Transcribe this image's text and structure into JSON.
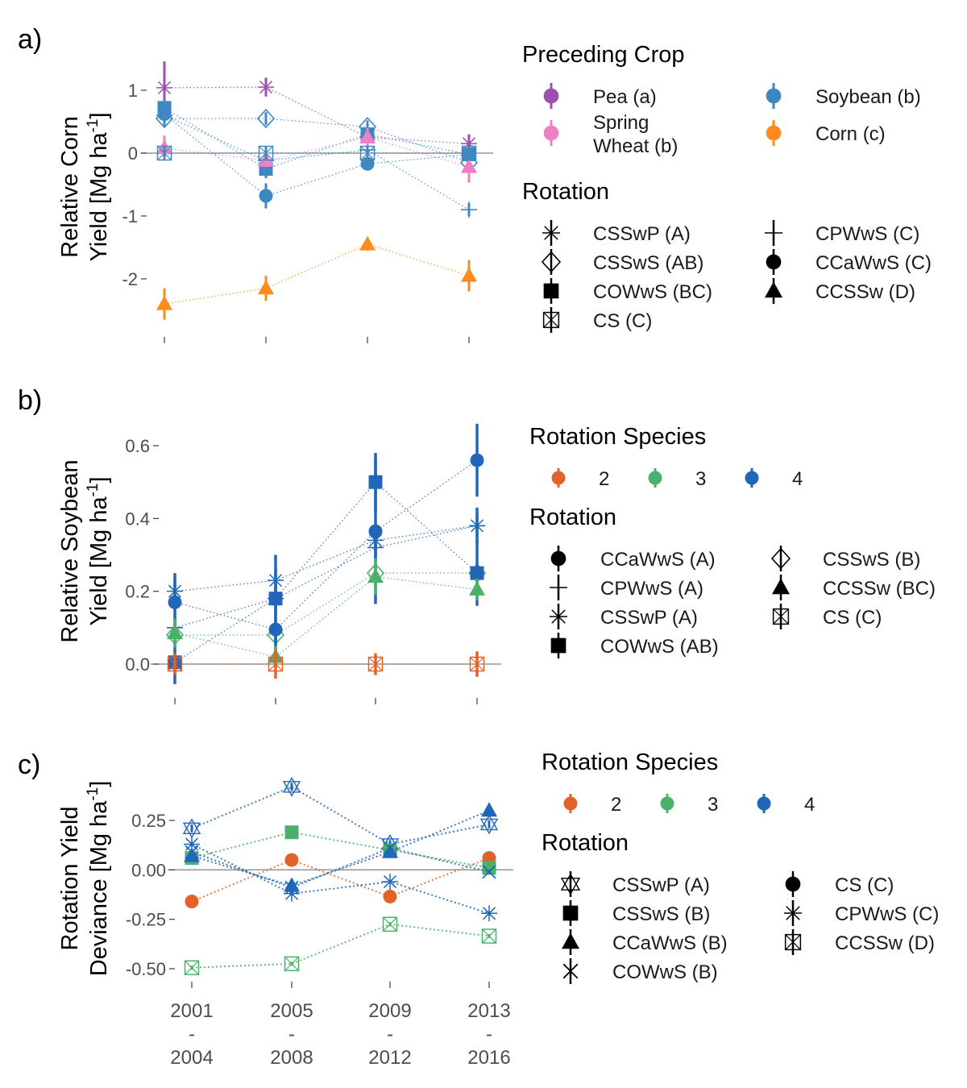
{
  "colors": {
    "pea": "#9b4fae",
    "spring_wheat": "#f07fc4",
    "soybean": "#3e88c2",
    "corn": "#ff8c1a",
    "species2": "#e2622a",
    "species3": "#4bb06a",
    "species4": "#2166b8",
    "zero_line": "#999999",
    "tick": "#4d4d4d"
  },
  "x_tick_labels": [
    [
      "2001",
      "-",
      "2004"
    ],
    [
      "2005",
      "-",
      "2008"
    ],
    [
      "2009",
      "-",
      "2012"
    ],
    [
      "2013",
      "-",
      "2016"
    ]
  ],
  "chart_data": [
    {
      "panel_label": "a)",
      "type": "scatter",
      "ylabel_lines": [
        "Relative Corn",
        "Yield [Mg ha",
        "-1",
        "]"
      ],
      "ylim": [
        -2.6,
        1.5
      ],
      "yticks": [
        1,
        0,
        -1,
        -2
      ],
      "ytick_labels": [
        "1",
        "0",
        "-1",
        "-2"
      ],
      "grid": false,
      "legend_placement": "right",
      "legends": [
        {
          "title": "Preceding Crop",
          "columns": 2,
          "entries": [
            {
              "label": [
                "Pea (a)"
              ],
              "color": "pea",
              "symbol": "circle"
            },
            {
              "label": [
                "Soybean (b)"
              ],
              "color": "soybean",
              "symbol": "circle"
            },
            {
              "label": [
                "Spring",
                "Wheat (b)"
              ],
              "color": "spring_wheat",
              "symbol": "circle"
            },
            {
              "label": [
                "Corn (c)"
              ],
              "color": "corn",
              "symbol": "circle"
            }
          ]
        },
        {
          "title": "Rotation",
          "columns": 2,
          "entries": [
            {
              "label": [
                "CSSwP (A)"
              ],
              "symbol": "asterisk"
            },
            {
              "label": [
                "CPWwS (C)"
              ],
              "symbol": "plus"
            },
            {
              "label": [
                "CSSwS (AB)"
              ],
              "symbol": "diamond-open"
            },
            {
              "label": [
                "CCaWwS (C)"
              ],
              "symbol": "circle"
            },
            {
              "label": [
                "COWwS (BC)"
              ],
              "symbol": "square"
            },
            {
              "label": [
                "CCSSw (D)"
              ],
              "symbol": "triangle"
            },
            {
              "label": [
                "CS (C)"
              ],
              "symbol": "square-x"
            }
          ]
        }
      ],
      "series": [
        {
          "rotation": "CSSwP",
          "symbol": "asterisk",
          "color": "pea",
          "y": [
            1.04,
            1.05,
            0.25,
            0.15
          ],
          "err": [
            0.42,
            0.15,
            0.15,
            0.15
          ]
        },
        {
          "rotation": "CPWwS",
          "symbol": "plus",
          "color": "soybean",
          "y": [
            0.6,
            -0.12,
            0.05,
            -0.9
          ],
          "err": [
            0.15,
            0.1,
            0.1,
            0.1
          ]
        },
        {
          "rotation": "CSSwS",
          "symbol": "diamond-open",
          "color": "soybean",
          "y": [
            0.55,
            0.55,
            0.42,
            -0.15
          ],
          "err": [
            0.12,
            0.1,
            0.1,
            0.1
          ]
        },
        {
          "rotation": "CCaWwS",
          "symbol": "circle",
          "color": "soybean",
          "y": [
            0.62,
            -0.68,
            -0.17,
            -0.02
          ],
          "err": [
            0.15,
            0.2,
            0.1,
            0.1
          ]
        },
        {
          "rotation": "COWwS",
          "symbol": "square",
          "color": "soybean",
          "y": [
            0.72,
            -0.25,
            0.3,
            -0.02
          ],
          "err": [
            0.15,
            0.15,
            0.1,
            0.1
          ]
        },
        {
          "rotation": "CCSSw",
          "symbol": "triangle",
          "color": "spring_wheat",
          "y": [
            0.08,
            -0.12,
            0.25,
            -0.22
          ],
          "err": [
            0.2,
            0.1,
            0.15,
            0.25
          ]
        },
        {
          "rotation": "CCSSw",
          "symbol": "triangle",
          "color": "corn",
          "y": [
            -2.4,
            -2.15,
            -1.45,
            -1.95
          ],
          "err": [
            0.25,
            0.2,
            0.1,
            0.25
          ]
        },
        {
          "rotation": "CS",
          "symbol": "square-x",
          "color": "soybean",
          "y": [
            0.0,
            0.0,
            0.0,
            0.0
          ],
          "err": [
            0.1,
            0.1,
            0.1,
            0.1
          ]
        }
      ]
    },
    {
      "panel_label": "b)",
      "type": "scatter",
      "ylabel_lines": [
        "Relative Soybean",
        "Yield [Mg ha",
        "-1",
        "]"
      ],
      "ylim": [
        -0.05,
        0.66
      ],
      "yticks": [
        0.6,
        0.4,
        0.2,
        0.0
      ],
      "ytick_labels": [
        "0.6",
        "0.4",
        "0.2",
        "0.0"
      ],
      "grid": false,
      "legend_placement": "right",
      "legends": [
        {
          "title": "Rotation Species",
          "columns": 3,
          "entries": [
            {
              "label": [
                "2"
              ],
              "color": "species2",
              "symbol": "circle"
            },
            {
              "label": [
                "3"
              ],
              "color": "species3",
              "symbol": "circle"
            },
            {
              "label": [
                "4"
              ],
              "color": "species4",
              "symbol": "circle"
            }
          ]
        },
        {
          "title": "Rotation",
          "columns": 2,
          "entries": [
            {
              "label": [
                "CCaWwS (A)"
              ],
              "symbol": "circle"
            },
            {
              "label": [
                "CSSwS (B)"
              ],
              "symbol": "diamond-open"
            },
            {
              "label": [
                "CPWwS (A)"
              ],
              "symbol": "plus"
            },
            {
              "label": [
                "CCSSw (BC)"
              ],
              "symbol": "triangle"
            },
            {
              "label": [
                "CSSwP (A)"
              ],
              "symbol": "asterisk"
            },
            {
              "label": [
                "CS (C)"
              ],
              "symbol": "square-x"
            },
            {
              "label": [
                "COWwS (AB)"
              ],
              "symbol": "square"
            }
          ]
        }
      ],
      "series": [
        {
          "rotation": "CSSwP",
          "symbol": "asterisk",
          "color": "species4",
          "y": [
            0.2,
            0.23,
            0.34,
            0.38
          ],
          "err": [
            0.03,
            0.03,
            0.03,
            0.05
          ]
        },
        {
          "rotation": "CPWwS",
          "symbol": "plus",
          "color": "species4",
          "y": [
            0.1,
            0.18,
            0.32,
            0.38
          ],
          "err": [
            0.03,
            0.03,
            0.03,
            0.03
          ]
        },
        {
          "rotation": "CSSwS",
          "symbol": "diamond-open",
          "color": "species3",
          "y": [
            0.08,
            0.08,
            0.25,
            0.25
          ],
          "err": [
            0.02,
            0.02,
            0.02,
            0.02
          ]
        },
        {
          "rotation": "CCaWwS",
          "symbol": "circle",
          "color": "species4",
          "y": [
            0.17,
            0.095,
            0.365,
            0.56
          ],
          "err": [
            0.08,
            0.1,
            0.2,
            0.1
          ]
        },
        {
          "rotation": "COWwS",
          "symbol": "square",
          "color": "species4",
          "y": [
            0.005,
            0.18,
            0.5,
            0.25
          ],
          "err": [
            0.06,
            0.12,
            0.08,
            0.09
          ]
        },
        {
          "rotation": "CCSSw",
          "symbol": "triangle",
          "color": "species3",
          "y": [
            0.085,
            0.02,
            0.24,
            0.205
          ],
          "err": [
            0.04,
            0.03,
            0.05,
            0.03
          ]
        },
        {
          "rotation": "CS",
          "symbol": "square-x",
          "color": "species2",
          "y": [
            0.0,
            0.0,
            0.0,
            0.0
          ],
          "err": [
            0.03,
            0.04,
            0.03,
            0.035
          ]
        }
      ]
    },
    {
      "panel_label": "c)",
      "type": "scatter",
      "ylabel_lines": [
        "Rotation Yield",
        "Deviance [Mg ha",
        "-1",
        "]"
      ],
      "ylim": [
        -0.55,
        0.45
      ],
      "yticks": [
        0.25,
        0.0,
        -0.25,
        -0.5
      ],
      "ytick_labels": [
        "0.25",
        "0.00",
        "-0.25",
        "-0.50"
      ],
      "grid": false,
      "legend_placement": "right",
      "legends": [
        {
          "title": "Rotation Species",
          "columns": 3,
          "entries": [
            {
              "label": [
                "2"
              ],
              "color": "species2",
              "symbol": "circle"
            },
            {
              "label": [
                "3"
              ],
              "color": "species3",
              "symbol": "circle"
            },
            {
              "label": [
                "4"
              ],
              "color": "species4",
              "symbol": "circle"
            }
          ]
        },
        {
          "title": "Rotation",
          "columns": 2,
          "entries": [
            {
              "label": [
                "CSSwP (A)"
              ],
              "symbol": "hourglass"
            },
            {
              "label": [
                "CS (C)"
              ],
              "symbol": "circle"
            },
            {
              "label": [
                "CSSwS (B)"
              ],
              "symbol": "square"
            },
            {
              "label": [
                "CPWwS (C)"
              ],
              "symbol": "asterisk"
            },
            {
              "label": [
                "CCaWwS (B)"
              ],
              "symbol": "triangle"
            },
            {
              "label": [
                "CCSSw (D)"
              ],
              "symbol": "square-x"
            },
            {
              "label": [
                "COWwS (B)"
              ],
              "symbol": "x"
            }
          ]
        }
      ],
      "series": [
        {
          "rotation": "CSSwP",
          "symbol": "hourglass",
          "color": "species4",
          "y": [
            0.21,
            0.42,
            0.13,
            0.23
          ],
          "err": [
            0.02,
            0.02,
            0.02,
            0.02
          ]
        },
        {
          "rotation": "CS",
          "symbol": "circle",
          "color": "species2",
          "y": [
            -0.16,
            0.05,
            -0.135,
            0.06
          ],
          "err": [
            0.01,
            0.01,
            0.01,
            0.01
          ]
        },
        {
          "rotation": "CSSwS",
          "symbol": "square",
          "color": "species3",
          "y": [
            0.06,
            0.19,
            0.1,
            0.01
          ],
          "err": [
            0.01,
            0.01,
            0.01,
            0.01
          ]
        },
        {
          "rotation": "CPWwS",
          "symbol": "asterisk",
          "color": "species4",
          "y": [
            0.13,
            -0.12,
            -0.06,
            -0.22
          ],
          "err": [
            0.01,
            0.01,
            0.01,
            0.01
          ]
        },
        {
          "rotation": "CCaWwS",
          "symbol": "triangle",
          "color": "species4",
          "y": [
            0.07,
            -0.08,
            0.09,
            0.3
          ],
          "err": [
            0.01,
            0.01,
            0.01,
            0.01
          ]
        },
        {
          "rotation": "CCSSw",
          "symbol": "square-x",
          "color": "species3",
          "y": [
            -0.495,
            -0.475,
            -0.275,
            -0.335
          ],
          "err": [
            0.01,
            0.01,
            0.01,
            0.01
          ]
        },
        {
          "rotation": "COWwS",
          "symbol": "x",
          "color": "species4",
          "y": [
            0.09,
            -0.09,
            0.11,
            -0.01
          ],
          "err": [
            0.01,
            0.01,
            0.01,
            0.01
          ]
        }
      ]
    }
  ]
}
